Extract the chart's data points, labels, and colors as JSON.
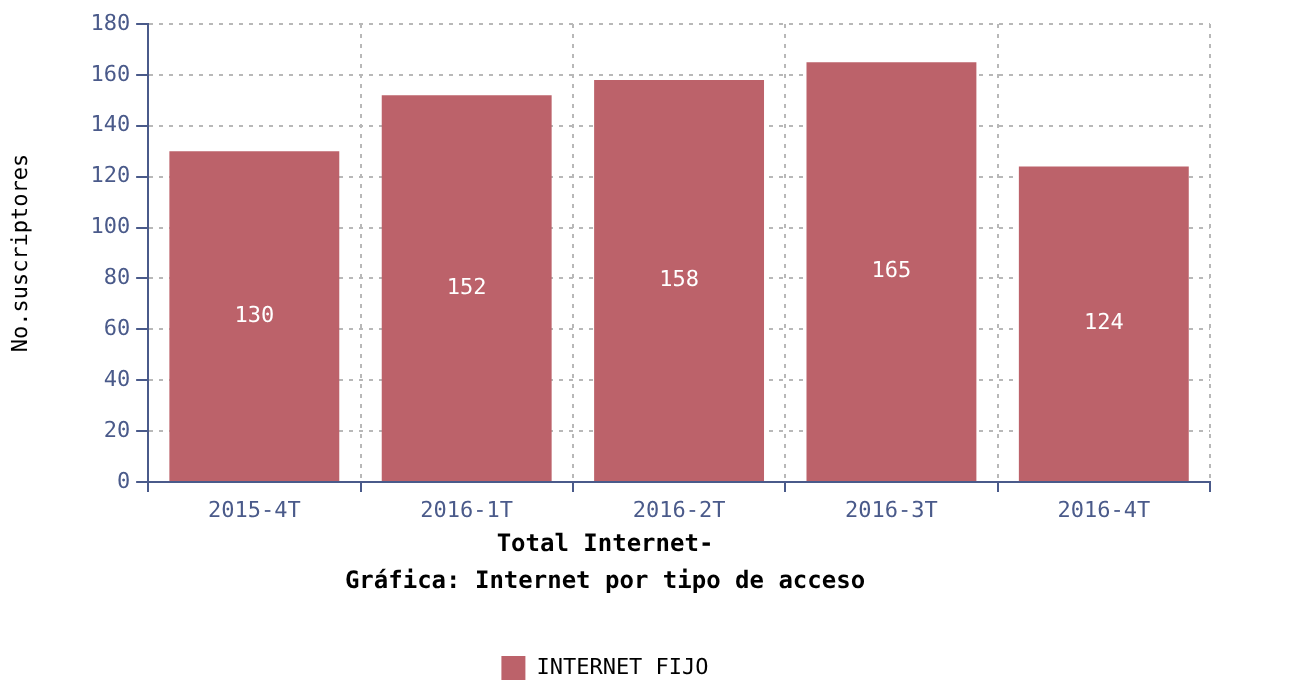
{
  "chart_data": {
    "type": "bar",
    "title": "Gráfica: Internet por tipo de acceso",
    "subtitle": "Total Internet-",
    "ylabel": "No.suscriptores",
    "categories": [
      "2015-4T",
      "2016-1T",
      "2016-2T",
      "2016-3T",
      "2016-4T"
    ],
    "series": [
      {
        "name": "INTERNET FIJO",
        "color": "#bc626a",
        "values": [
          130,
          152,
          158,
          165,
          124
        ]
      }
    ],
    "ylim": [
      0,
      180
    ],
    "yticks": [
      0,
      20,
      40,
      60,
      80,
      100,
      120,
      140,
      160,
      180
    ],
    "grid": true,
    "legend": "bottom",
    "data_labels": true
  }
}
